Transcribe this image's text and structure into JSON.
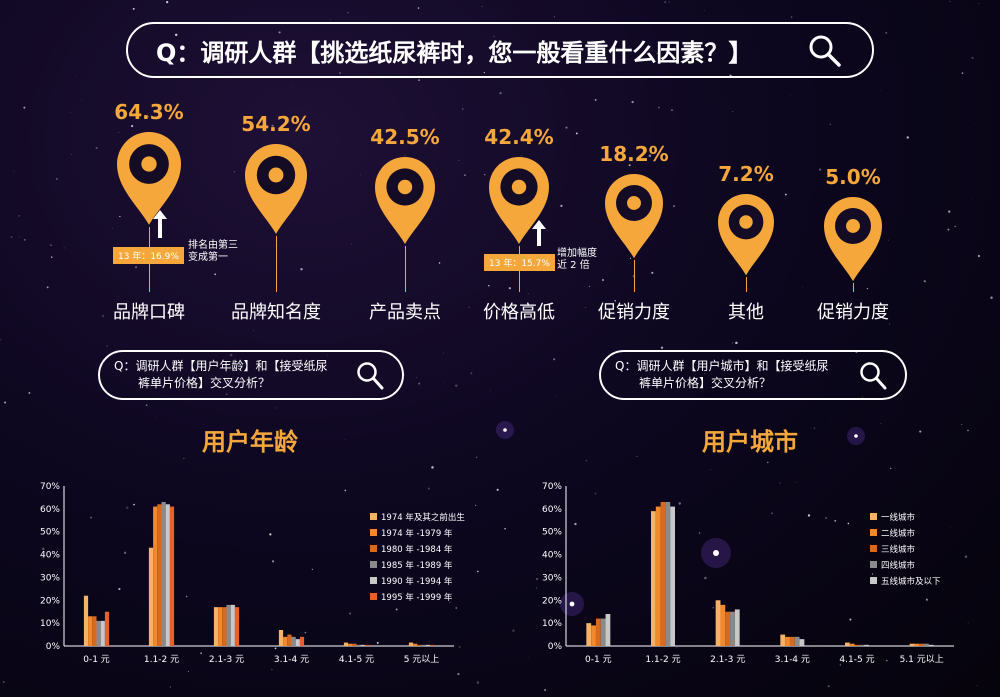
{
  "header": {
    "question": "Q：调研人群【挑选纸尿裤时，您一般看重什么因素？】"
  },
  "factors": [
    {
      "pct": "64.3%",
      "value": 64.3,
      "label": "品牌口碑"
    },
    {
      "pct": "54.2%",
      "value": 54.2,
      "label": "品牌知名度"
    },
    {
      "pct": "42.5%",
      "value": 42.5,
      "label": "产品卖点"
    },
    {
      "pct": "42.4%",
      "value": 42.4,
      "label": "价格高低"
    },
    {
      "pct": "18.2%",
      "value": 18.2,
      "label": "促销力度"
    },
    {
      "pct": "7.2%",
      "value": 7.2,
      "label": "其他"
    },
    {
      "pct": "5.0%",
      "value": 5.0,
      "label": "促销力度"
    }
  ],
  "notes": {
    "brand_prev": "13 年：16.9%",
    "brand_change_1": "排名由第三",
    "brand_change_2": "变成第一",
    "price_prev": "13 年：15.7%",
    "price_change_1": "增加幅度",
    "price_change_2": "近 2 倍"
  },
  "left_question": {
    "line1": "Q：调研人群【用户年龄】和【接受纸尿",
    "line2": "裤单片价格】交叉分析？"
  },
  "right_question": {
    "line1": "Q：调研人群【用户城市】和【接受纸尿",
    "line2": "裤单片价格】交叉分析？"
  },
  "colors": {
    "accent": "#f6a73b"
  },
  "icons": [
    "search-icon",
    "map-pin-icon",
    "arrow-up-icon"
  ],
  "chart_data": [
    {
      "type": "bar",
      "title": "用户年龄",
      "categories": [
        "0-1 元",
        "1.1-2 元",
        "2.1-3 元",
        "3.1-4 元",
        "4.1-5 元",
        "5 元以上"
      ],
      "ylim": [
        0,
        70
      ],
      "yticks": [
        "0%",
        "10%",
        "20%",
        "30%",
        "40%",
        "50%",
        "60%",
        "70%"
      ],
      "legend_position": "right",
      "series": [
        {
          "name": "1974 年及其之前出生",
          "color": "#f7b267",
          "values": [
            22,
            43,
            17,
            7,
            1.5,
            1.5
          ]
        },
        {
          "name": "1974 年 -1979 年",
          "color": "#f08a2c",
          "values": [
            13,
            61,
            17,
            4,
            1,
            1
          ]
        },
        {
          "name": "1980 年 -1984 年",
          "color": "#d86a20",
          "values": [
            13,
            62,
            17,
            5,
            1,
            0.5
          ]
        },
        {
          "name": "1985 年 -1989 年",
          "color": "#8a8a8a",
          "values": [
            11,
            63,
            18,
            4,
            0.5,
            0.5
          ]
        },
        {
          "name": "1990 年 -1994 年",
          "color": "#c8c8c8",
          "values": [
            11,
            62,
            18,
            3,
            0.5,
            0.5
          ]
        },
        {
          "name": "1995 年 -1999 年",
          "color": "#e8602a",
          "values": [
            15,
            61,
            17,
            4,
            0.5,
            0.5
          ]
        }
      ]
    },
    {
      "type": "bar",
      "title": "用户城市",
      "categories": [
        "0-1 元",
        "1.1-2 元",
        "2.1-3 元",
        "3.1-4 元",
        "4.1-5 元",
        "5.1 元以上"
      ],
      "ylim": [
        0,
        70
      ],
      "yticks": [
        "0%",
        "10%",
        "20%",
        "30%",
        "40%",
        "50%",
        "60%",
        "70%"
      ],
      "legend_position": "right",
      "series": [
        {
          "name": "一线城市",
          "color": "#f7b267",
          "values": [
            10,
            59,
            20,
            5,
            1.5,
            1
          ]
        },
        {
          "name": "二线城市",
          "color": "#f08a2c",
          "values": [
            9,
            61,
            18,
            4,
            1,
            1
          ]
        },
        {
          "name": "三线城市",
          "color": "#d86a20",
          "values": [
            12,
            63,
            15,
            4,
            0.5,
            1
          ]
        },
        {
          "name": "四线城市",
          "color": "#8a8a8a",
          "values": [
            12,
            63,
            15,
            4,
            0.5,
            1
          ]
        },
        {
          "name": "五线城市及以下",
          "color": "#c8c8c8",
          "values": [
            14,
            61,
            16,
            3,
            0.5,
            0.5
          ]
        }
      ]
    }
  ]
}
